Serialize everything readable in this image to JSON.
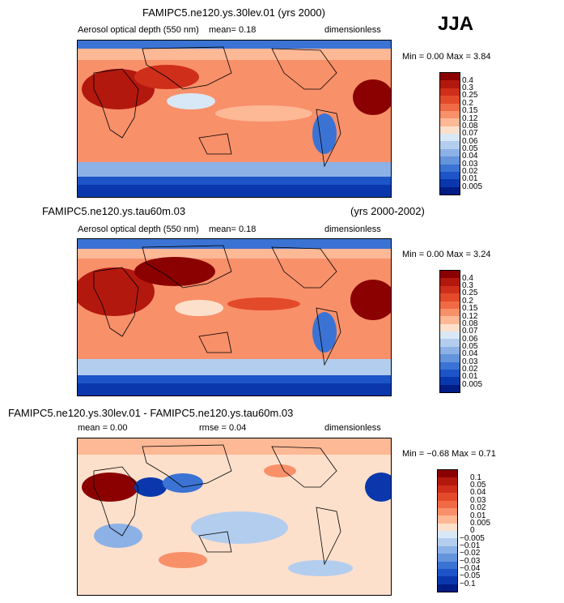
{
  "season": "JJA",
  "panels": [
    {
      "title": "FAMIPC5.ne120.ys.30lev.01 (yrs 2000)",
      "title_right": "",
      "subtitle_left": "Aerosol optical depth (550 nm)",
      "mean_text": "mean=   0.18",
      "rmse_text": "",
      "units": "dimensionless",
      "min_text": "Min =   0.00  Max =    3.84",
      "levels": [
        "0.4",
        "0.3",
        "0.25",
        "0.2",
        "0.15",
        "0.12",
        "0.08",
        "0.07",
        "0.06",
        "0.05",
        "0.04",
        "0.03",
        "0.02",
        "0.01",
        "0.005"
      ]
    },
    {
      "title": "FAMIPC5.ne120.ys.tau60m.03",
      "title_right": "(yrs 2000-2002)",
      "subtitle_left": "Aerosol optical depth (550 nm)",
      "mean_text": "mean=   0.18",
      "rmse_text": "",
      "units": "dimensionless",
      "min_text": "Min =   0.00  Max =    3.24",
      "levels": [
        "0.4",
        "0.3",
        "0.25",
        "0.2",
        "0.15",
        "0.12",
        "0.08",
        "0.07",
        "0.06",
        "0.05",
        "0.04",
        "0.03",
        "0.02",
        "0.01",
        "0.005"
      ]
    },
    {
      "title": "FAMIPC5.ne120.ys.30lev.01 - FAMIPC5.ne120.ys.tau60m.03",
      "title_right": "",
      "subtitle_left": "mean =    0.00",
      "mean_text": "",
      "rmse_text": "rmse =   0.04",
      "units": "dimensionless",
      "min_text": "Min =  −0.68  Max =    0.71",
      "levels": [
        "0.1",
        "0.05",
        "0.04",
        "0.03",
        "0.02",
        "0.01",
        "0.005",
        "0",
        "−0.005",
        "−0.01",
        "−0.02",
        "−0.03",
        "−0.04",
        "−0.05",
        "−0.1"
      ]
    }
  ],
  "colors": {
    "scale16": [
      "#8b0000",
      "#b2180e",
      "#cf2e1a",
      "#e34a2a",
      "#f06b45",
      "#f8906a",
      "#fdb896",
      "#fde0cb",
      "#d9e8f6",
      "#b3cdee",
      "#8cb1e6",
      "#6494db",
      "#3b73d4",
      "#1d55c8",
      "#0a38ac",
      "#001c85"
    ]
  },
  "chart_data": [
    {
      "type": "heatmap",
      "title": "FAMIPC5.ne120.ys.30lev.01 (yrs 2000)",
      "variable": "Aerosol optical depth (550 nm)",
      "units": "dimensionless",
      "mean": 0.18,
      "min": 0.0,
      "max": 3.84,
      "levels": [
        0.005,
        0.01,
        0.02,
        0.03,
        0.04,
        0.05,
        0.06,
        0.07,
        0.08,
        0.12,
        0.15,
        0.2,
        0.25,
        0.3,
        0.4
      ]
    },
    {
      "type": "heatmap",
      "title": "FAMIPC5.ne120.ys.tau60m.03 (yrs 2000-2002)",
      "variable": "Aerosol optical depth (550 nm)",
      "units": "dimensionless",
      "mean": 0.18,
      "min": 0.0,
      "max": 3.24,
      "levels": [
        0.005,
        0.01,
        0.02,
        0.03,
        0.04,
        0.05,
        0.06,
        0.07,
        0.08,
        0.12,
        0.15,
        0.2,
        0.25,
        0.3,
        0.4
      ]
    },
    {
      "type": "heatmap",
      "title": "FAMIPC5.ne120.ys.30lev.01 - FAMIPC5.ne120.ys.tau60m.03",
      "units": "dimensionless",
      "mean": 0.0,
      "rmse": 0.04,
      "min": -0.68,
      "max": 0.71,
      "levels": [
        -0.1,
        -0.05,
        -0.04,
        -0.03,
        -0.02,
        -0.01,
        -0.005,
        0,
        0.005,
        0.01,
        0.02,
        0.03,
        0.04,
        0.05,
        0.1
      ]
    }
  ]
}
